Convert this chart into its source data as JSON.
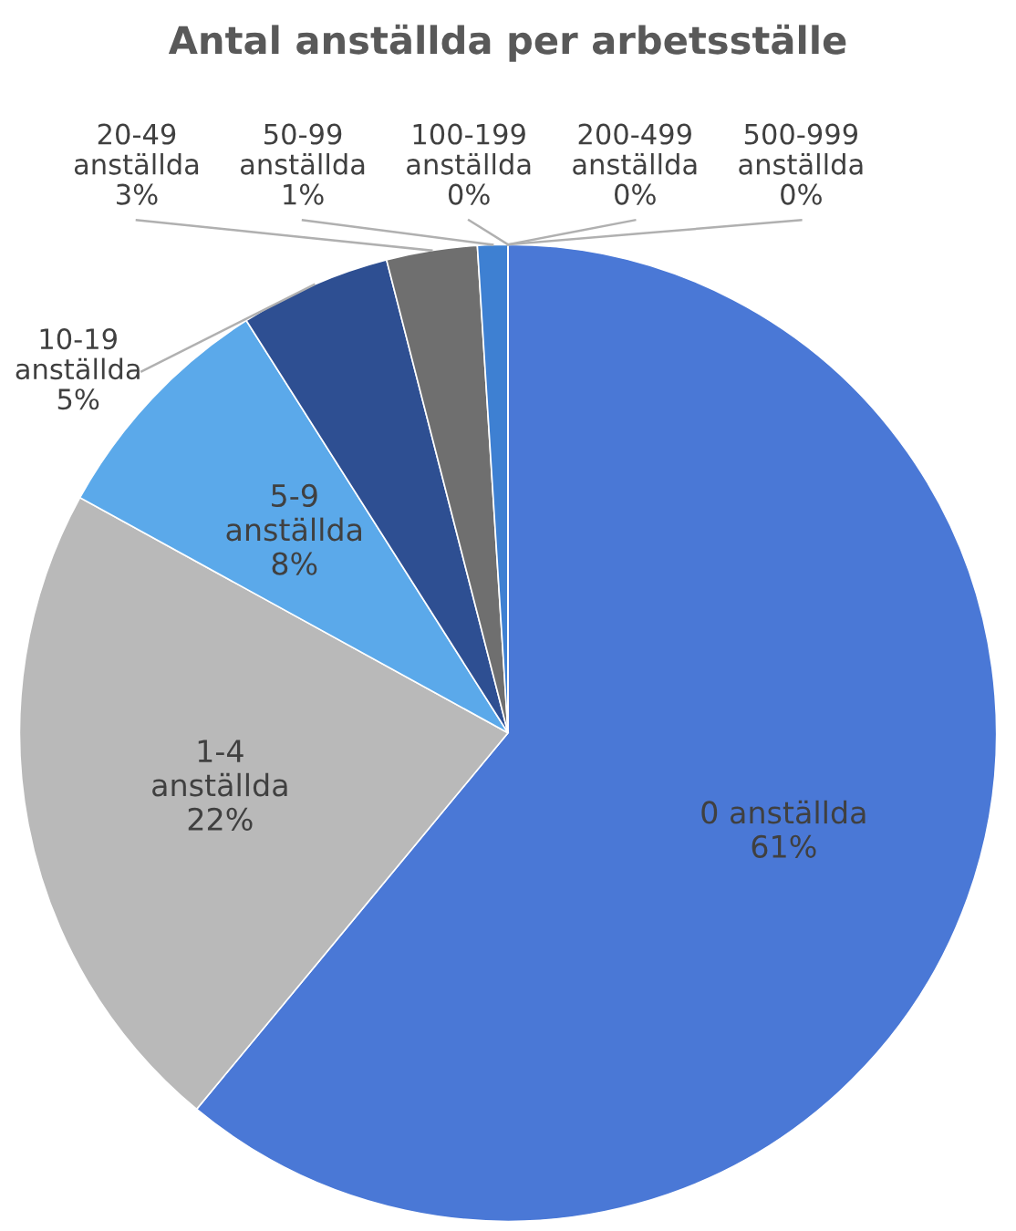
{
  "chart_data": {
    "type": "pie",
    "title": "Antal anställda per arbetsställe",
    "categories": [
      "0 anställda",
      "1-4 anställda",
      "5-9 anställda",
      "10-19 anställda",
      "20-49 anställda",
      "50-99 anställda",
      "100-199 anställda",
      "200-499 anställda",
      "500-999 anställda"
    ],
    "values": [
      61,
      22,
      8,
      5,
      3,
      1,
      0,
      0,
      0
    ],
    "value_labels": [
      "61%",
      "22%",
      "8%",
      "5%",
      "3%",
      "1%",
      "0%",
      "0%",
      "0%"
    ],
    "colors": [
      "#4a78d6",
      "#b9b9b9",
      "#5ba9ea",
      "#2e4f92",
      "#6f6f6f",
      "#3e80d2",
      "#a3a3a3",
      "#80c0f0",
      "#1f3a72"
    ],
    "legend": false
  }
}
